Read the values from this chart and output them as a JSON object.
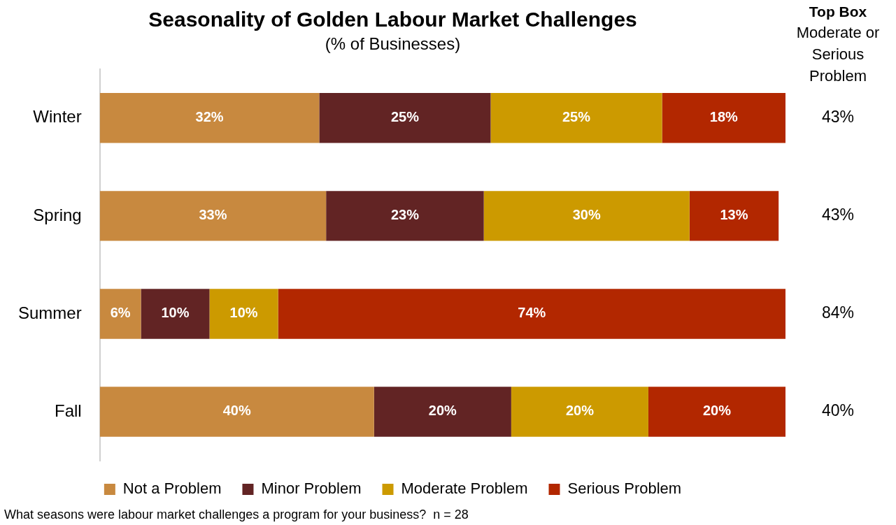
{
  "chart_data": {
    "type": "bar",
    "orientation": "horizontal",
    "stacked": true,
    "title": "Seasonality of Golden Labour Market Challenges",
    "subtitle": "(% of Businesses)",
    "categories": [
      "Winter",
      "Spring",
      "Summer",
      "Fall"
    ],
    "series": [
      {
        "name": "Not a Problem",
        "color": "#c8893f",
        "values": [
          32,
          33,
          6,
          40
        ],
        "value_labels": [
          "32%",
          "33%",
          "6%",
          "40%"
        ]
      },
      {
        "name": "Minor Problem",
        "color": "#622424",
        "values": [
          25,
          23,
          10,
          20
        ],
        "value_labels": [
          "25%",
          "23%",
          "10%",
          "20%"
        ]
      },
      {
        "name": "Moderate Problem",
        "color": "#cc9a00",
        "values": [
          25,
          30,
          10,
          20
        ],
        "value_labels": [
          "25%",
          "30%",
          "10%",
          "20%"
        ]
      },
      {
        "name": "Serious Problem",
        "color": "#b22700",
        "values": [
          18,
          13,
          74,
          20
        ],
        "value_labels": [
          "18%",
          "13%",
          "74%",
          "20%"
        ]
      }
    ],
    "tick_labels": "y",
    "grid": false,
    "legend": "bottom",
    "annotations": [
      "Top Box",
      "Moderate or Serious Problem",
      "43%",
      "43%",
      "84%",
      "40%",
      "What seasons were labour market challenges a program for your business?  n = 28"
    ]
  }
}
